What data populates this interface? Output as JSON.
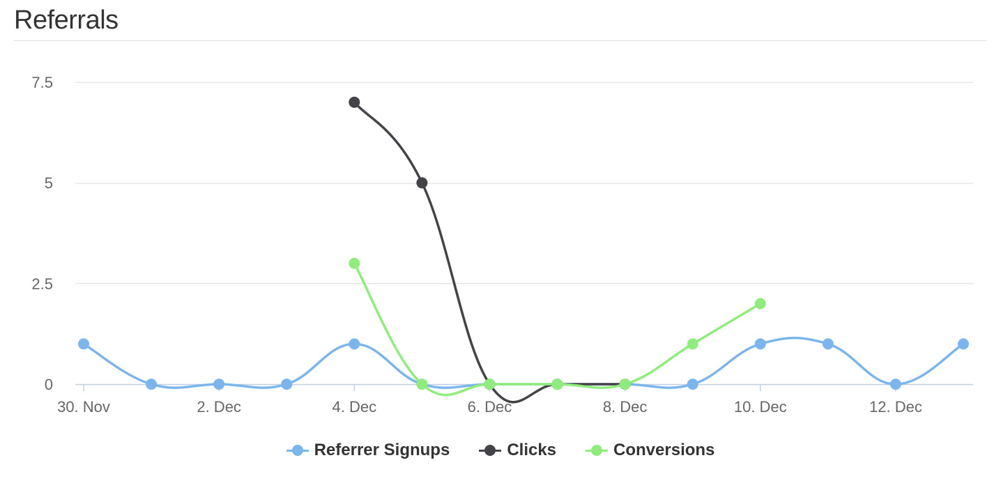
{
  "header": {
    "title": "Referrals"
  },
  "chart_data": {
    "type": "line",
    "title": "",
    "xlabel": "",
    "ylabel": "",
    "x_type": "date",
    "x": [
      "2015-11-30",
      "2015-12-01",
      "2015-12-02",
      "2015-12-03",
      "2015-12-04",
      "2015-12-05",
      "2015-12-06",
      "2015-12-07",
      "2015-12-08",
      "2015-12-09",
      "2015-12-10",
      "2015-12-11",
      "2015-12-12",
      "2015-12-13"
    ],
    "xticks": [
      {
        "x": "2015-11-30",
        "label": "30. Nov"
      },
      {
        "x": "2015-12-02",
        "label": "2. Dec"
      },
      {
        "x": "2015-12-04",
        "label": "4. Dec"
      },
      {
        "x": "2015-12-06",
        "label": "6. Dec"
      },
      {
        "x": "2015-12-08",
        "label": "8. Dec"
      },
      {
        "x": "2015-12-10",
        "label": "10. Dec"
      },
      {
        "x": "2015-12-12",
        "label": "12. Dec"
      }
    ],
    "ylim": [
      0,
      7.5
    ],
    "yticks": [
      {
        "value": 0,
        "label": "0"
      },
      {
        "value": 2.5,
        "label": "2.5"
      },
      {
        "value": 5,
        "label": "5"
      },
      {
        "value": 7.5,
        "label": "7.5"
      }
    ],
    "grid": true,
    "legend_position": "bottom-center",
    "series": [
      {
        "name": "Referrer Signups",
        "color": "#7cb5ec",
        "values": [
          1,
          0,
          0,
          0,
          1,
          0,
          0,
          0,
          0,
          0,
          1,
          1,
          0,
          1
        ]
      },
      {
        "name": "Clicks",
        "color": "#434348",
        "values": [
          null,
          null,
          null,
          null,
          7,
          5,
          0,
          0,
          0,
          null,
          null,
          null,
          null,
          null
        ]
      },
      {
        "name": "Conversions",
        "color": "#90ed7d",
        "values": [
          null,
          null,
          null,
          null,
          3,
          0,
          0,
          0,
          0,
          1,
          2,
          null,
          null,
          null
        ]
      }
    ]
  }
}
